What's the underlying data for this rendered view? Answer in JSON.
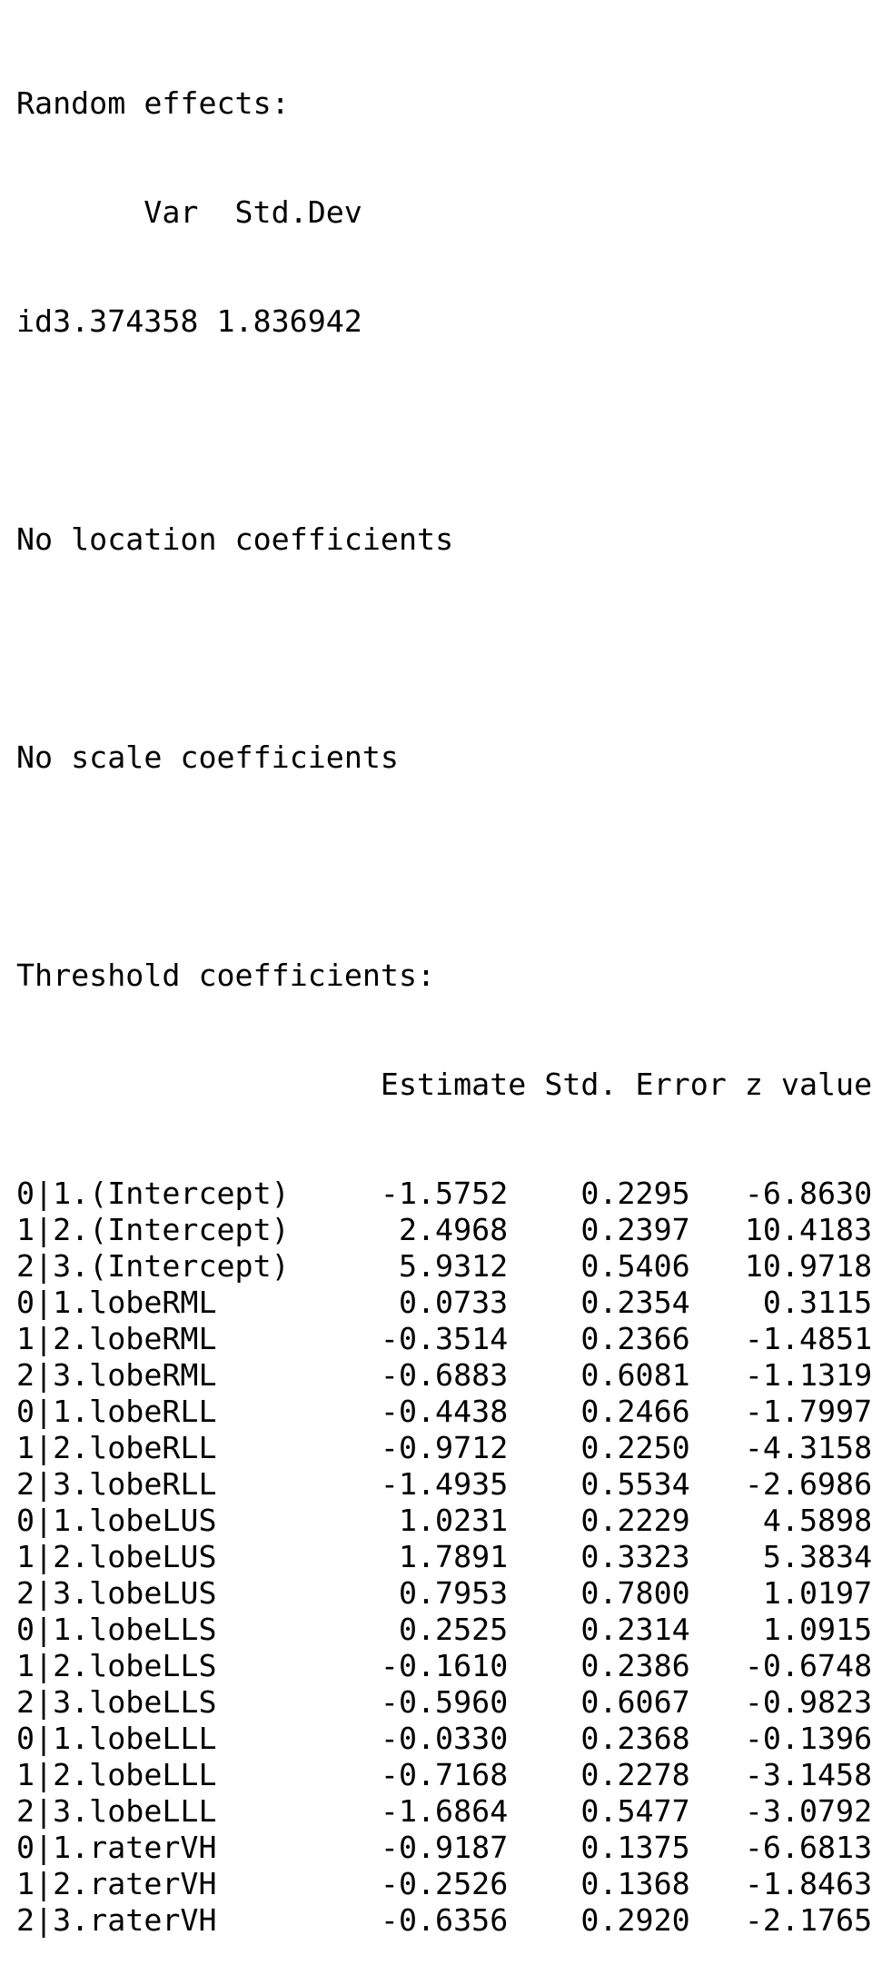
{
  "random_effects": {
    "heading": "Random effects:",
    "col_var": "Var",
    "col_sd": "Std.Dev",
    "row_label": "id",
    "var": "3.374358",
    "sd": "1.836942"
  },
  "location_note": "No location coefficients",
  "scale_note": "No scale coefficients",
  "threshold": {
    "heading": "Threshold coefficients:",
    "columns": [
      "Estimate",
      "Std. Error",
      "z value"
    ],
    "rows": [
      {
        "name": "0|1.(Intercept)",
        "estimate": "-1.5752",
        "se": "0.2295",
        "z": "-6.8630"
      },
      {
        "name": "1|2.(Intercept)",
        "estimate": "2.4968",
        "se": "0.2397",
        "z": "10.4183"
      },
      {
        "name": "2|3.(Intercept)",
        "estimate": "5.9312",
        "se": "0.5406",
        "z": "10.9718"
      },
      {
        "name": "0|1.lobeRML",
        "estimate": "0.0733",
        "se": "0.2354",
        "z": "0.3115"
      },
      {
        "name": "1|2.lobeRML",
        "estimate": "-0.3514",
        "se": "0.2366",
        "z": "-1.4851"
      },
      {
        "name": "2|3.lobeRML",
        "estimate": "-0.6883",
        "se": "0.6081",
        "z": "-1.1319"
      },
      {
        "name": "0|1.lobeRLL",
        "estimate": "-0.4438",
        "se": "0.2466",
        "z": "-1.7997"
      },
      {
        "name": "1|2.lobeRLL",
        "estimate": "-0.9712",
        "se": "0.2250",
        "z": "-4.3158"
      },
      {
        "name": "2|3.lobeRLL",
        "estimate": "-1.4935",
        "se": "0.5534",
        "z": "-2.6986"
      },
      {
        "name": "0|1.lobeLUS",
        "estimate": "1.0231",
        "se": "0.2229",
        "z": "4.5898"
      },
      {
        "name": "1|2.lobeLUS",
        "estimate": "1.7891",
        "se": "0.3323",
        "z": "5.3834"
      },
      {
        "name": "2|3.lobeLUS",
        "estimate": "0.7953",
        "se": "0.7800",
        "z": "1.0197"
      },
      {
        "name": "0|1.lobeLLS",
        "estimate": "0.2525",
        "se": "0.2314",
        "z": "1.0915"
      },
      {
        "name": "1|2.lobeLLS",
        "estimate": "-0.1610",
        "se": "0.2386",
        "z": "-0.6748"
      },
      {
        "name": "2|3.lobeLLS",
        "estimate": "-0.5960",
        "se": "0.6067",
        "z": "-0.9823"
      },
      {
        "name": "0|1.lobeLLL",
        "estimate": "-0.0330",
        "se": "0.2368",
        "z": "-0.1396"
      },
      {
        "name": "1|2.lobeLLL",
        "estimate": "-0.7168",
        "se": "0.2278",
        "z": "-3.1458"
      },
      {
        "name": "2|3.lobeLLL",
        "estimate": "-1.6864",
        "se": "0.5477",
        "z": "-3.0792"
      },
      {
        "name": "0|1.raterVH",
        "estimate": "-0.9187",
        "se": "0.1375",
        "z": "-6.6813"
      },
      {
        "name": "1|2.raterVH",
        "estimate": "-0.2526",
        "se": "0.1368",
        "z": "-1.8463"
      },
      {
        "name": "2|3.raterVH",
        "estimate": "-0.6356",
        "se": "0.2920",
        "z": "-2.1765"
      }
    ]
  }
}
